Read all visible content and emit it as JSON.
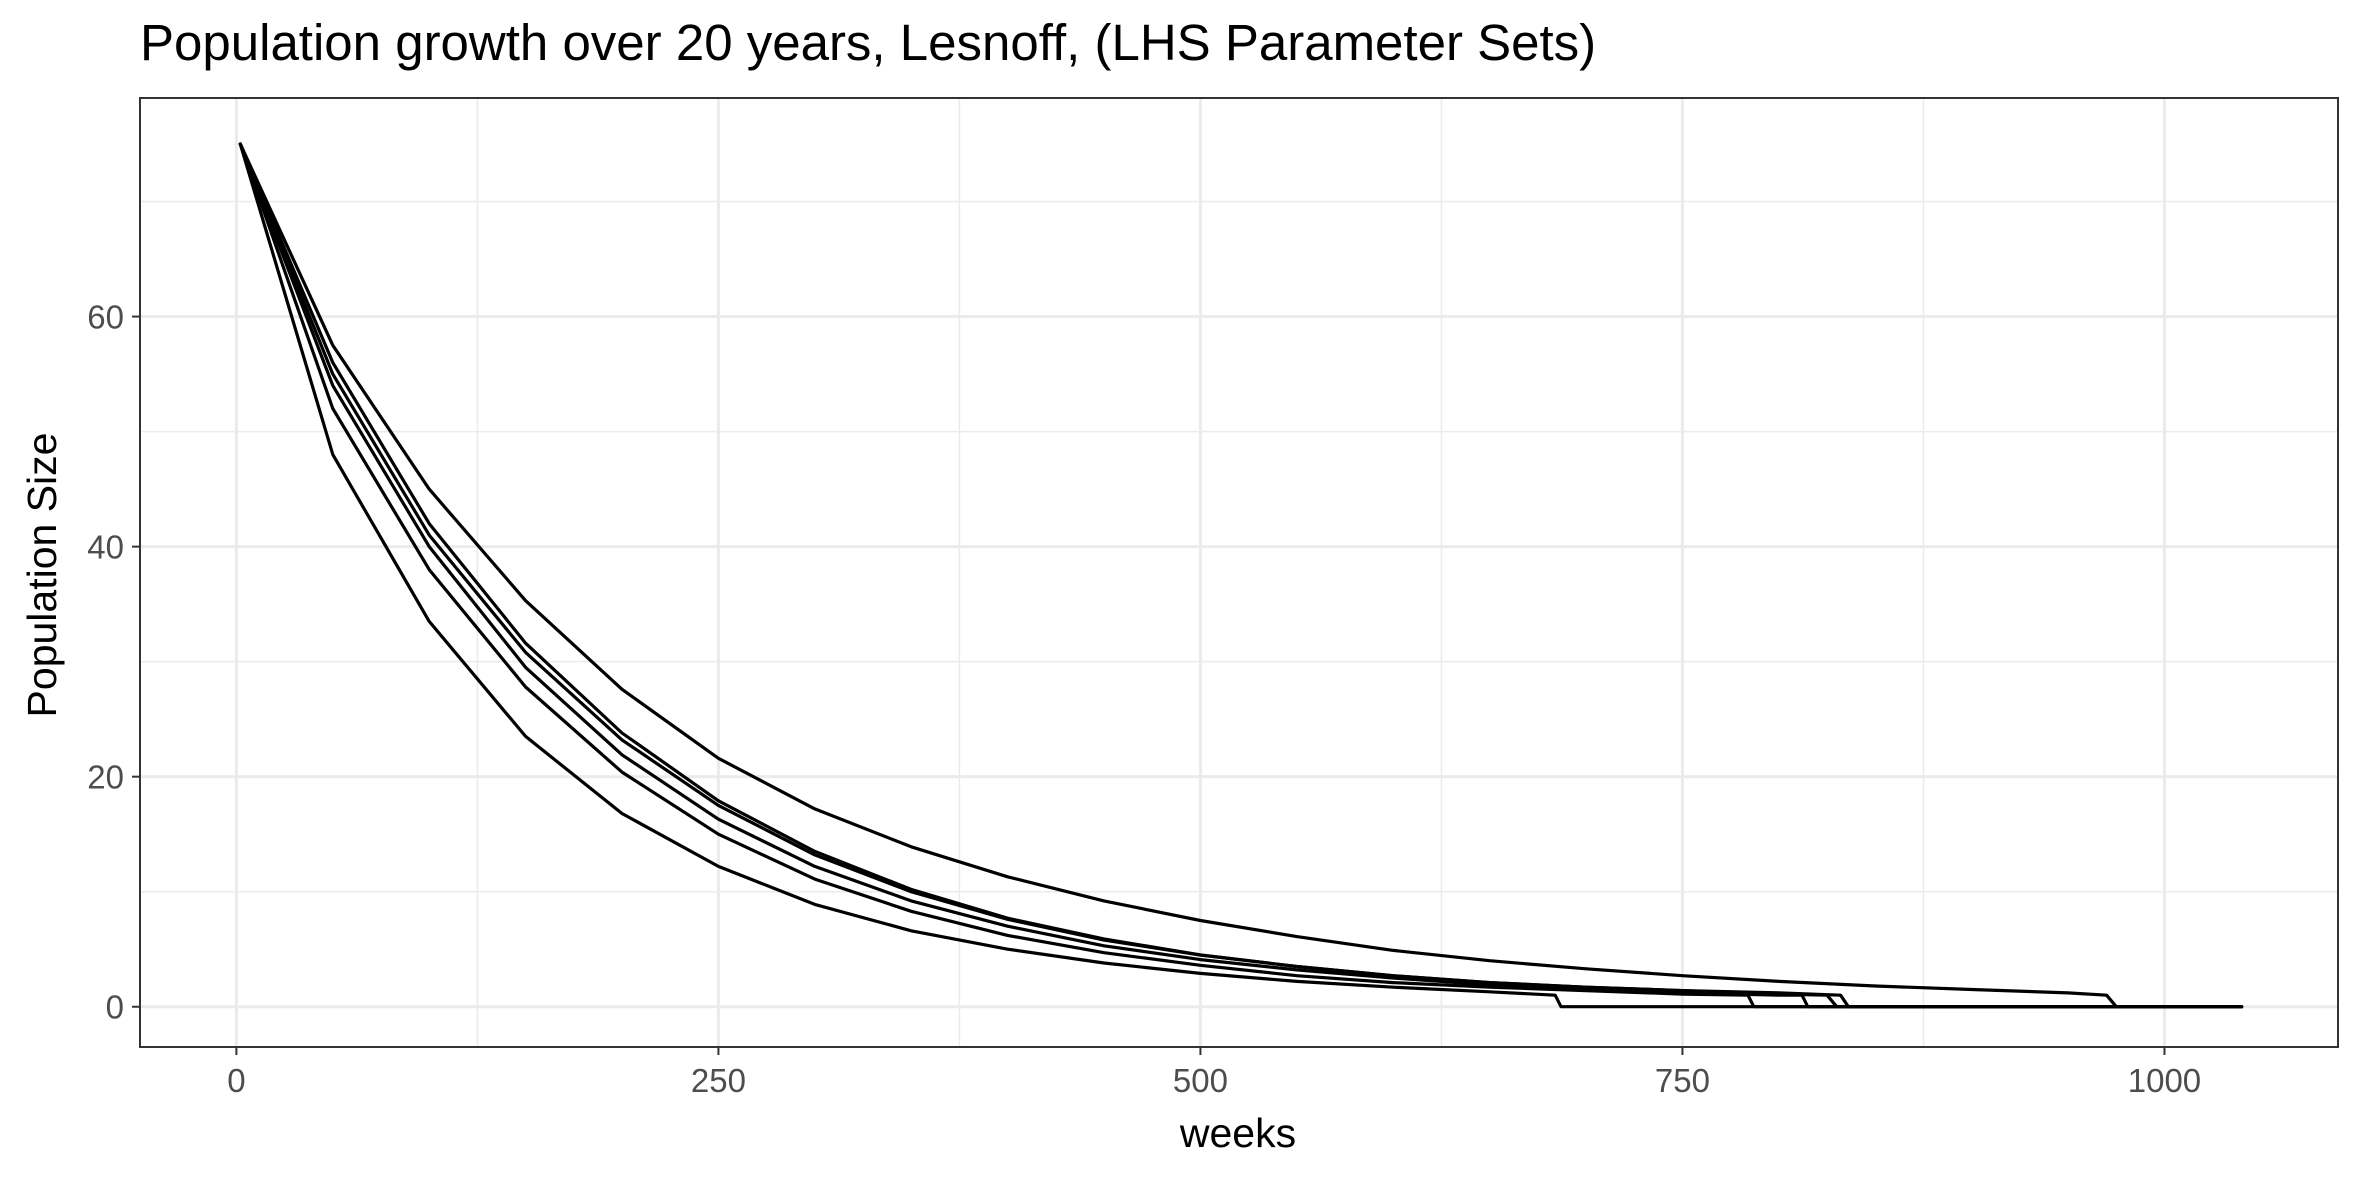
{
  "chart_data": {
    "type": "line",
    "title": "Population growth over 20 years, Lesnoff, (LHS Parameter Sets)",
    "xlabel": "weeks",
    "ylabel": "Population Size",
    "xlim": [
      -50,
      1090
    ],
    "ylim": [
      -3.5,
      79
    ],
    "x_ticks": [
      0,
      250,
      500,
      750,
      1000
    ],
    "x_tick_labels": [
      "0",
      "250",
      "500",
      "750",
      "1000"
    ],
    "y_ticks": [
      0,
      20,
      40,
      60
    ],
    "y_tick_labels": [
      "0",
      "20",
      "40",
      "60"
    ],
    "grid": true,
    "legend": "none",
    "line_color": "#000000",
    "series": [
      {
        "x": [
          2,
          50,
          100,
          150,
          200,
          250,
          300,
          350,
          400,
          450,
          500,
          550,
          600,
          650,
          700,
          750,
          800,
          850,
          900,
          950,
          970,
          975,
          1040
        ],
        "y": [
          75,
          57.5,
          45,
          35.3,
          27.6,
          21.6,
          17.2,
          13.9,
          11.3,
          9.2,
          7.5,
          6.1,
          4.9,
          4.0,
          3.3,
          2.7,
          2.2,
          1.8,
          1.5,
          1.2,
          1.0,
          0,
          0
        ]
      },
      {
        "x": [
          2,
          50,
          100,
          150,
          200,
          250,
          300,
          350,
          400,
          450,
          500,
          550,
          600,
          650,
          700,
          750,
          800,
          825,
          830,
          1040
        ],
        "y": [
          75,
          56,
          42,
          31.6,
          23.8,
          17.9,
          13.5,
          10.2,
          7.7,
          5.9,
          4.5,
          3.5,
          2.7,
          2.1,
          1.7,
          1.4,
          1.1,
          1.0,
          0,
          0
        ]
      },
      {
        "x": [
          2,
          50,
          100,
          150,
          200,
          250,
          300,
          350,
          400,
          450,
          500,
          550,
          600,
          650,
          700,
          750,
          800,
          832,
          836,
          1040
        ],
        "y": [
          75,
          55,
          41,
          30.8,
          23.2,
          17.5,
          13.2,
          10.0,
          7.6,
          5.8,
          4.5,
          3.5,
          2.7,
          2.1,
          1.7,
          1.4,
          1.2,
          1.0,
          0,
          0
        ]
      },
      {
        "x": [
          2,
          50,
          100,
          150,
          200,
          250,
          300,
          350,
          400,
          450,
          500,
          550,
          600,
          650,
          700,
          750,
          800,
          812,
          815,
          1040
        ],
        "y": [
          75,
          54,
          40,
          29.5,
          21.9,
          16.3,
          12.2,
          9.2,
          7.0,
          5.3,
          4.1,
          3.2,
          2.5,
          1.9,
          1.5,
          1.2,
          1.0,
          1.0,
          0,
          0
        ]
      },
      {
        "x": [
          2,
          50,
          100,
          150,
          200,
          250,
          300,
          350,
          400,
          450,
          500,
          550,
          600,
          650,
          700,
          750,
          784,
          787,
          1040
        ],
        "y": [
          75,
          52,
          38,
          27.8,
          20.4,
          15.0,
          11.1,
          8.3,
          6.2,
          4.7,
          3.6,
          2.7,
          2.1,
          1.7,
          1.4,
          1.1,
          1.0,
          0,
          0
        ]
      },
      {
        "x": [
          2,
          50,
          100,
          150,
          200,
          250,
          300,
          350,
          400,
          450,
          500,
          550,
          600,
          650,
          684,
          687,
          1040
        ],
        "y": [
          75,
          48,
          33.5,
          23.5,
          16.8,
          12.2,
          8.9,
          6.6,
          5.0,
          3.8,
          2.9,
          2.2,
          1.7,
          1.3,
          1.0,
          0,
          0
        ]
      }
    ]
  }
}
